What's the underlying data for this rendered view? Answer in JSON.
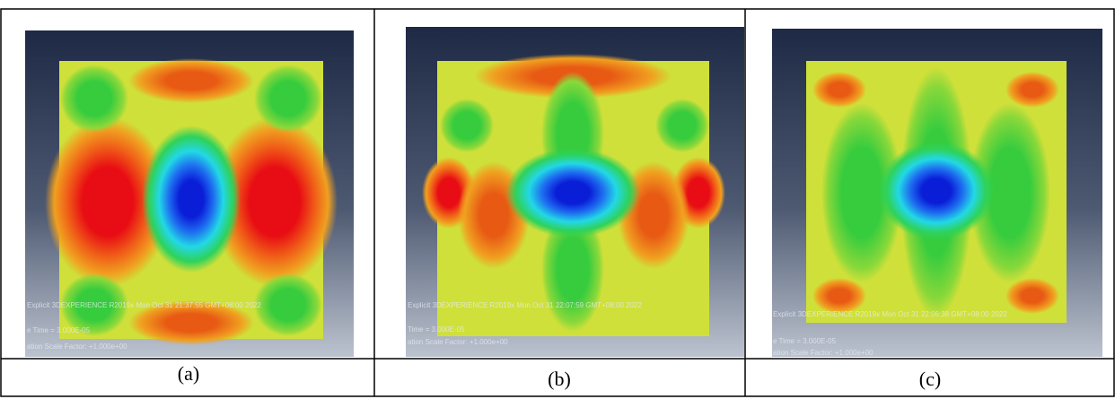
{
  "figure": {
    "panels": [
      {
        "caption": "(a)",
        "header": "Explicit 3DEXPERIENCE R2019x   Mon Oct 31 21:37:55 GMT+08:00 2022",
        "time": "e Time =   3.000E-05",
        "scale": "ation Scale Factor: +1.000e+00"
      },
      {
        "caption": "(b)",
        "header": "Explicit 3DEXPERIENCE R2019x   Mon Oct 31 22:07:59 GMT+08:00 2022",
        "time": "Time =   3.000E-05",
        "scale": "ation Scale Factor: +1.000e+00"
      },
      {
        "caption": "(c)",
        "header": "Explicit 3DEXPERIENCE R2019x   Mon Oct 31 22:06:38 GMT+08:00 2022",
        "time": "e Time =   3.000E-05",
        "scale": "ation Scale Factor: +1.000e+00"
      }
    ]
  }
}
